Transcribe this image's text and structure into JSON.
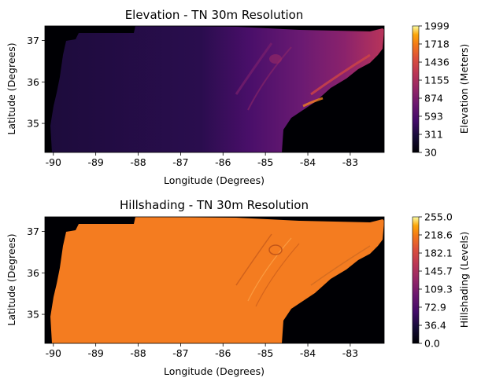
{
  "chart_data": [
    {
      "type": "heatmap",
      "title": "Elevation - TN 30m Resolution",
      "xlabel": "Longitude (Degrees)",
      "ylabel": "Latitude (Degrees)",
      "xlim": [
        -90.2,
        -82.2
      ],
      "ylim": [
        34.3,
        37.35
      ],
      "xticks": [
        "-90",
        "-89",
        "-88",
        "-87",
        "-86",
        "-85",
        "-84",
        "-83"
      ],
      "yticks": [
        "35",
        "36",
        "37"
      ],
      "colormap": "inferno",
      "colorbar": {
        "label": "Elevation (Meters)",
        "range": [
          30,
          1999
        ],
        "ticks": [
          "30",
          "311",
          "593",
          "874",
          "1155",
          "1436",
          "1718",
          "1999"
        ]
      },
      "grid": false
    },
    {
      "type": "heatmap",
      "title": "Hillshading - TN 30m Resolution",
      "xlabel": "Longitude (Degrees)",
      "ylabel": "Latitude (Degrees)",
      "xlim": [
        -90.2,
        -82.2
      ],
      "ylim": [
        34.3,
        37.35
      ],
      "xticks": [
        "-90",
        "-89",
        "-88",
        "-87",
        "-86",
        "-85",
        "-84",
        "-83"
      ],
      "yticks": [
        "35",
        "36",
        "37"
      ],
      "colormap": "inferno",
      "colorbar": {
        "label": "Hillshading (Levels)",
        "range": [
          0,
          255
        ],
        "ticks": [
          "0.0",
          "36.4",
          "72.9",
          "109.3",
          "145.7",
          "182.1",
          "218.6",
          "255.0"
        ]
      },
      "grid": false
    }
  ]
}
